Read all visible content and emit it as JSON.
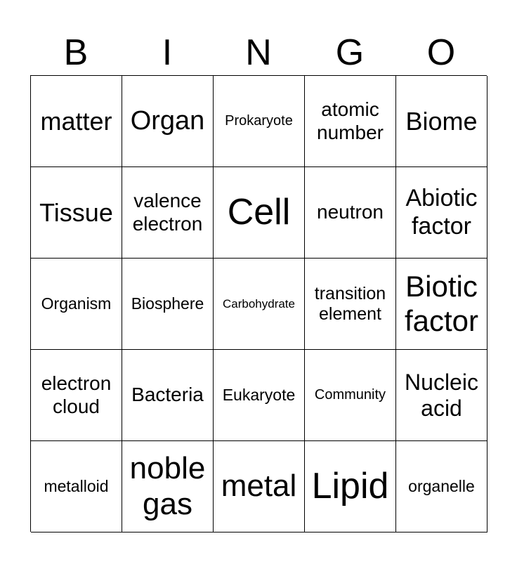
{
  "header": [
    "B",
    "I",
    "N",
    "G",
    "O"
  ],
  "cells": [
    "matter",
    "Organ",
    "Prokaryote",
    "atomic number",
    "Biome",
    "Tissue",
    "valence electron",
    "Cell",
    "neutron",
    "Abiotic factor",
    "Organism",
    "Biosphere",
    "Carbohydrate",
    "transition element",
    "Biotic factor",
    "electron cloud",
    "Bacteria",
    "Eukaryote",
    "Community",
    "Nucleic acid",
    "metalloid",
    "noble gas",
    "metal",
    "Lipid",
    "organelle"
  ]
}
